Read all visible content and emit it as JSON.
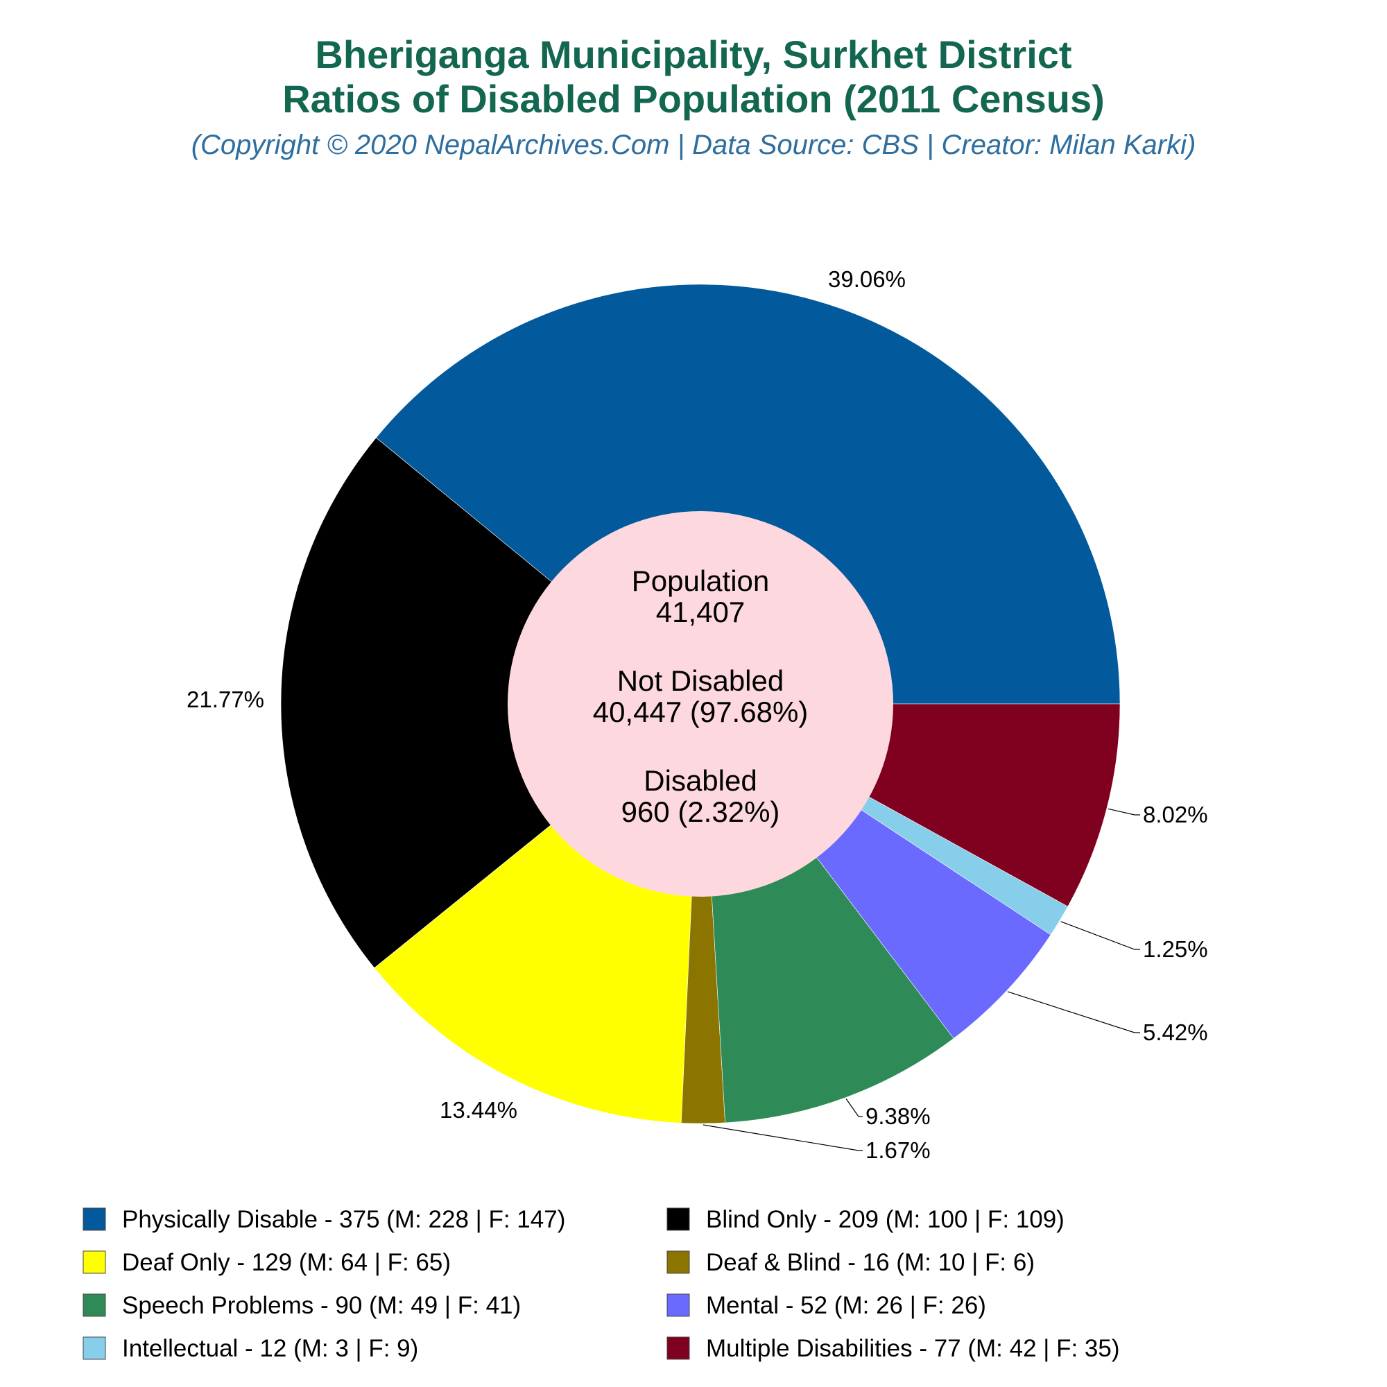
{
  "title_line1": "Bheriganga Municipality, Surkhet District",
  "title_line2": "Ratios of Disabled Population (2011 Census)",
  "subtitle": "(Copyright © 2020 NepalArchives.Com | Data Source: CBS | Creator: Milan Karki)",
  "center": {
    "population_label": "Population",
    "population_value": "41,407",
    "not_disabled_label": "Not Disabled",
    "not_disabled_value": "40,447 (97.68%)",
    "disabled_label": "Disabled",
    "disabled_value": "960 (2.32%)"
  },
  "legend": [
    {
      "text": "Physically Disable - 375 (M: 228 | F: 147)"
    },
    {
      "text": "Blind Only - 209 (M: 100 | F: 109)"
    },
    {
      "text": "Deaf Only - 129 (M: 64 | F: 65)"
    },
    {
      "text": "Deaf & Blind - 16 (M: 10 | F: 6)"
    },
    {
      "text": "Speech Problems - 90 (M: 49 | F: 41)"
    },
    {
      "text": "Mental - 52 (M: 26 | F: 26)"
    },
    {
      "text": "Intellectual - 12 (M: 3 | F: 9)"
    },
    {
      "text": "Multiple Disabilities - 77 (M: 42 | F: 35)"
    }
  ],
  "chart_data": {
    "type": "pie",
    "hole": true,
    "categories": [
      "Physically Disable",
      "Blind Only",
      "Deaf Only",
      "Deaf & Blind",
      "Speech Problems",
      "Mental",
      "Intellectual",
      "Multiple Disabilities"
    ],
    "values": [
      375,
      209,
      129,
      16,
      90,
      52,
      12,
      77
    ],
    "male": [
      228,
      100,
      64,
      10,
      49,
      26,
      3,
      42
    ],
    "female": [
      147,
      109,
      65,
      6,
      41,
      26,
      9,
      35
    ],
    "percent_labels": [
      "39.06%",
      "21.77%",
      "13.44%",
      "1.67%",
      "9.38%",
      "5.42%",
      "1.25%",
      "8.02%"
    ],
    "colors": [
      "#02599c",
      "#000000",
      "#ffff00",
      "#8b7500",
      "#2e8b57",
      "#6a6aff",
      "#87ceeb",
      "#800020"
    ],
    "center_color": "#fdd8de",
    "legend_placement": "bottom"
  }
}
